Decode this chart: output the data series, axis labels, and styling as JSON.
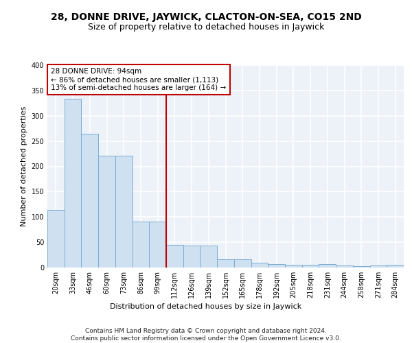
{
  "title": "28, DONNE DRIVE, JAYWICK, CLACTON-ON-SEA, CO15 2ND",
  "subtitle": "Size of property relative to detached houses in Jaywick",
  "xlabel": "Distribution of detached houses by size in Jaywick",
  "ylabel": "Number of detached properties",
  "categories": [
    "20sqm",
    "33sqm",
    "46sqm",
    "60sqm",
    "73sqm",
    "86sqm",
    "99sqm",
    "112sqm",
    "126sqm",
    "139sqm",
    "152sqm",
    "165sqm",
    "178sqm",
    "192sqm",
    "205sqm",
    "218sqm",
    "231sqm",
    "244sqm",
    "258sqm",
    "271sqm",
    "284sqm"
  ],
  "values": [
    114,
    333,
    265,
    221,
    221,
    91,
    91,
    45,
    43,
    43,
    16,
    16,
    9,
    7,
    6,
    6,
    7,
    4,
    3,
    4,
    5
  ],
  "bar_color": "#cfe0f0",
  "bar_edge_color": "#7aadd4",
  "vline_color": "#c00000",
  "annotation_text": "28 DONNE DRIVE: 94sqm\n← 86% of detached houses are smaller (1,113)\n13% of semi-detached houses are larger (164) →",
  "annotation_box_color": "#ffffff",
  "annotation_box_edge_color": "#c00000",
  "ylim": [
    0,
    400
  ],
  "yticks": [
    0,
    50,
    100,
    150,
    200,
    250,
    300,
    350,
    400
  ],
  "footer": "Contains HM Land Registry data © Crown copyright and database right 2024.\nContains public sector information licensed under the Open Government Licence v3.0.",
  "background_color": "#edf2f9",
  "grid_color": "#ffffff",
  "title_fontsize": 10,
  "subtitle_fontsize": 9,
  "axis_label_fontsize": 8,
  "tick_fontsize": 7,
  "annotation_fontsize": 7.5,
  "footer_fontsize": 6.5
}
